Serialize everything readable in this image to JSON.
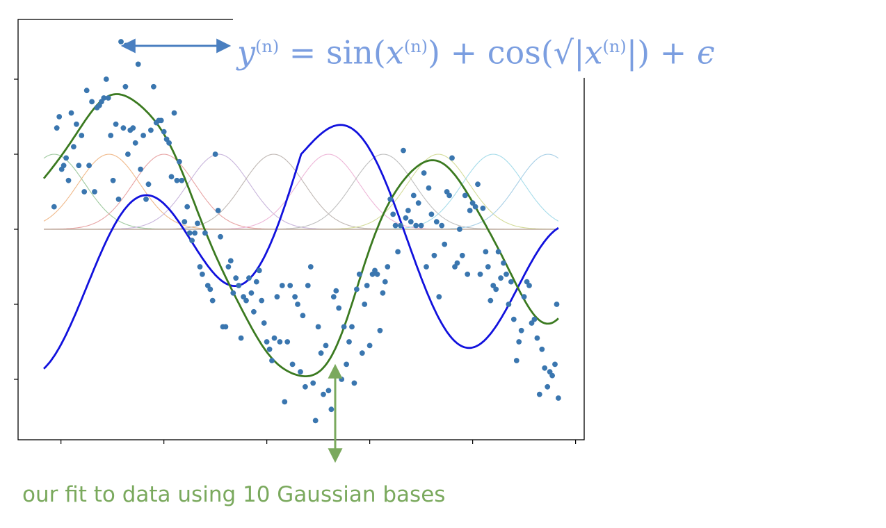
{
  "formula": {
    "y": "y",
    "n1": "(n)",
    "eq": " = sin(",
    "x1": "x",
    "n2": "(n)",
    "mid": ") + cos(√|",
    "x2": "x",
    "n3": "(n)",
    "end": "|) + ",
    "eps": "ϵ"
  },
  "caption": "our fit to data using 10 Gaussian bases",
  "colors": {
    "scatter": "#3a76af",
    "true_curve": "#1111dd",
    "fit_curve": "#3b7a20",
    "arrow_blue": "#4a7fc0",
    "arrow_green": "#7aa95d"
  },
  "chart_data": {
    "type": "scatter",
    "xlim": [
      -7.5,
      7.5
    ],
    "ylim": [
      -2.85,
      2.75
    ],
    "xticks": [
      -7,
      -4,
      -1,
      2,
      5,
      8
    ],
    "yticks": [
      -2,
      -1,
      0,
      1,
      2
    ],
    "grid": false,
    "basis_centers": [
      -7.2,
      -5.6,
      -4.0,
      -2.4,
      -0.8,
      0.8,
      2.4,
      4.0,
      5.6,
      7.2
    ],
    "basis_amplitude": 1.0,
    "basis_width": 0.9,
    "series": [
      {
        "kind": "scatter",
        "points": [
          [
            -7.2,
            0.3
          ],
          [
            -7.12,
            1.35
          ],
          [
            -7.05,
            1.5
          ],
          [
            -6.98,
            0.8
          ],
          [
            -6.92,
            0.85
          ],
          [
            -6.85,
            0.95
          ],
          [
            -6.78,
            0.65
          ],
          [
            -6.7,
            1.55
          ],
          [
            -6.63,
            1.1
          ],
          [
            -6.55,
            1.4
          ],
          [
            -6.48,
            0.85
          ],
          [
            -6.4,
            1.25
          ],
          [
            -6.32,
            0.5
          ],
          [
            -6.25,
            1.85
          ],
          [
            -6.18,
            0.85
          ],
          [
            -6.1,
            1.7
          ],
          [
            -6.02,
            0.5
          ],
          [
            -5.95,
            1.62
          ],
          [
            -5.88,
            1.65
          ],
          [
            -5.82,
            1.7
          ],
          [
            -5.75,
            1.75
          ],
          [
            -5.68,
            2.0
          ],
          [
            -5.62,
            1.75
          ],
          [
            -5.55,
            1.25
          ],
          [
            -5.48,
            0.65
          ],
          [
            -5.4,
            1.4
          ],
          [
            -5.32,
            0.4
          ],
          [
            -5.25,
            2.5
          ],
          [
            -5.18,
            1.35
          ],
          [
            -5.12,
            1.9
          ],
          [
            -5.05,
            1.0
          ],
          [
            -4.98,
            1.32
          ],
          [
            -4.9,
            1.35
          ],
          [
            -4.83,
            1.15
          ],
          [
            -4.75,
            2.2
          ],
          [
            -4.68,
            0.8
          ],
          [
            -4.6,
            1.25
          ],
          [
            -4.52,
            0.4
          ],
          [
            -4.45,
            0.6
          ],
          [
            -4.38,
            1.32
          ],
          [
            -4.3,
            1.9
          ],
          [
            -4.22,
            1.42
          ],
          [
            -4.15,
            1.45
          ],
          [
            -4.08,
            1.45
          ],
          [
            -4.0,
            1.3
          ],
          [
            -3.92,
            1.2
          ],
          [
            -3.85,
            1.15
          ],
          [
            -3.78,
            0.7
          ],
          [
            -3.7,
            1.55
          ],
          [
            -3.62,
            0.65
          ],
          [
            -3.55,
            0.9
          ],
          [
            -3.48,
            0.65
          ],
          [
            -3.4,
            0.1
          ],
          [
            -3.32,
            0.3
          ],
          [
            -3.25,
            -0.05
          ],
          [
            -3.18,
            -0.15
          ],
          [
            -3.1,
            -0.05
          ],
          [
            -3.02,
            0.08
          ],
          [
            -2.95,
            -0.5
          ],
          [
            -2.88,
            -0.6
          ],
          [
            -2.8,
            -0.05
          ],
          [
            -2.72,
            -0.75
          ],
          [
            -2.65,
            -0.8
          ],
          [
            -2.58,
            -0.95
          ],
          [
            -2.5,
            1.0
          ],
          [
            -2.42,
            0.25
          ],
          [
            -2.35,
            -0.1
          ],
          [
            -2.28,
            -1.3
          ],
          [
            -2.2,
            -1.3
          ],
          [
            -2.12,
            -0.5
          ],
          [
            -2.05,
            -0.42
          ],
          [
            -1.98,
            -0.85
          ],
          [
            -1.9,
            -0.65
          ],
          [
            -1.82,
            -0.75
          ],
          [
            -1.75,
            -1.45
          ],
          [
            -1.68,
            -0.9
          ],
          [
            -1.6,
            -0.95
          ],
          [
            -1.52,
            -0.65
          ],
          [
            -1.45,
            -0.85
          ],
          [
            -1.38,
            -1.1
          ],
          [
            -1.3,
            -0.7
          ],
          [
            -1.22,
            -0.55
          ],
          [
            -1.15,
            -0.95
          ],
          [
            -1.08,
            -1.25
          ],
          [
            -1.0,
            -1.5
          ],
          [
            -0.92,
            -1.6
          ],
          [
            -0.85,
            -1.75
          ],
          [
            -0.78,
            -1.45
          ],
          [
            -0.7,
            -0.9
          ],
          [
            -0.62,
            -1.5
          ],
          [
            -0.55,
            -0.75
          ],
          [
            -0.48,
            -2.3
          ],
          [
            -0.4,
            -1.5
          ],
          [
            -0.32,
            -0.75
          ],
          [
            -0.25,
            -1.8
          ],
          [
            -0.18,
            -0.9
          ],
          [
            -0.1,
            -1.0
          ],
          [
            -0.02,
            -1.9
          ],
          [
            0.05,
            -1.15
          ],
          [
            0.12,
            -2.1
          ],
          [
            0.2,
            -0.75
          ],
          [
            0.28,
            -0.5
          ],
          [
            0.35,
            -2.05
          ],
          [
            0.42,
            -2.55
          ],
          [
            0.5,
            -1.3
          ],
          [
            0.58,
            -1.65
          ],
          [
            0.65,
            -2.2
          ],
          [
            0.72,
            -1.55
          ],
          [
            0.8,
            -2.15
          ],
          [
            0.88,
            -2.4
          ],
          [
            0.95,
            -0.9
          ],
          [
            1.02,
            -0.82
          ],
          [
            1.1,
            -1.05
          ],
          [
            1.18,
            -2.0
          ],
          [
            1.25,
            -1.3
          ],
          [
            1.32,
            -1.8
          ],
          [
            1.4,
            -1.5
          ],
          [
            1.48,
            -1.3
          ],
          [
            1.55,
            -2.05
          ],
          [
            1.62,
            -0.8
          ],
          [
            1.7,
            -0.6
          ],
          [
            1.78,
            -1.65
          ],
          [
            1.85,
            -1.0
          ],
          [
            1.92,
            -0.75
          ],
          [
            2.0,
            -1.55
          ],
          [
            2.08,
            -0.6
          ],
          [
            2.15,
            -0.55
          ],
          [
            2.22,
            -0.6
          ],
          [
            2.3,
            -1.35
          ],
          [
            2.38,
            -0.85
          ],
          [
            2.45,
            -0.7
          ],
          [
            2.52,
            -0.5
          ],
          [
            2.6,
            0.4
          ],
          [
            2.68,
            0.2
          ],
          [
            2.75,
            0.05
          ],
          [
            2.82,
            -0.3
          ],
          [
            2.9,
            0.05
          ],
          [
            2.98,
            1.05
          ],
          [
            3.05,
            0.15
          ],
          [
            3.12,
            0.25
          ],
          [
            3.2,
            0.1
          ],
          [
            3.28,
            0.45
          ],
          [
            3.35,
            0.05
          ],
          [
            3.42,
            0.35
          ],
          [
            3.5,
            0.05
          ],
          [
            3.58,
            0.75
          ],
          [
            3.65,
            -0.5
          ],
          [
            3.72,
            0.55
          ],
          [
            3.8,
            0.2
          ],
          [
            3.88,
            -0.35
          ],
          [
            3.95,
            0.1
          ],
          [
            4.02,
            -0.9
          ],
          [
            4.1,
            0.05
          ],
          [
            4.18,
            -0.2
          ],
          [
            4.25,
            0.5
          ],
          [
            4.32,
            0.45
          ],
          [
            4.4,
            0.95
          ],
          [
            4.48,
            -0.5
          ],
          [
            4.55,
            -0.45
          ],
          [
            4.62,
            0.0
          ],
          [
            4.7,
            -0.35
          ],
          [
            4.78,
            0.45
          ],
          [
            4.85,
            -0.6
          ],
          [
            4.92,
            0.25
          ],
          [
            5.0,
            0.35
          ],
          [
            5.08,
            0.3
          ],
          [
            5.15,
            0.6
          ],
          [
            5.22,
            -0.6
          ],
          [
            5.3,
            0.28
          ],
          [
            5.38,
            -0.3
          ],
          [
            5.45,
            -0.5
          ],
          [
            5.52,
            -0.95
          ],
          [
            5.6,
            -0.75
          ],
          [
            5.68,
            -0.8
          ],
          [
            5.75,
            -0.3
          ],
          [
            5.82,
            -0.65
          ],
          [
            5.9,
            -0.45
          ],
          [
            5.98,
            -0.6
          ],
          [
            6.05,
            -1.0
          ],
          [
            6.12,
            -0.7
          ],
          [
            6.2,
            -1.2
          ],
          [
            6.28,
            -1.75
          ],
          [
            6.35,
            -1.5
          ],
          [
            6.42,
            -1.35
          ],
          [
            6.5,
            -0.9
          ],
          [
            6.58,
            -0.7
          ],
          [
            6.65,
            -0.75
          ],
          [
            6.72,
            -1.25
          ],
          [
            6.8,
            -1.2
          ],
          [
            6.88,
            -1.45
          ],
          [
            6.95,
            -2.2
          ],
          [
            7.02,
            -1.6
          ],
          [
            7.1,
            -1.85
          ],
          [
            7.18,
            -2.1
          ],
          [
            7.25,
            -1.9
          ],
          [
            7.32,
            -1.95
          ],
          [
            7.4,
            -1.8
          ],
          [
            7.45,
            -1.0
          ],
          [
            7.5,
            -2.25
          ],
          [
            -5.1,
            2.45
          ]
        ]
      },
      {
        "kind": "line",
        "role": "true_function",
        "function": "sin(x) + cos(sqrt(|x|))"
      },
      {
        "kind": "line",
        "role": "fit",
        "weights": [
          0.55,
          1.45,
          1.05,
          -0.38,
          -1.35,
          -1.55,
          0.35,
          0.85,
          -0.05,
          -1.25
        ]
      }
    ],
    "annotations": [
      {
        "type": "double-arrow",
        "color": "blue",
        "direction": "horizontal",
        "between": [
          "scatter",
          "formula"
        ]
      },
      {
        "type": "double-arrow",
        "color": "green",
        "direction": "vertical",
        "between": [
          "fit",
          "caption"
        ]
      }
    ]
  }
}
